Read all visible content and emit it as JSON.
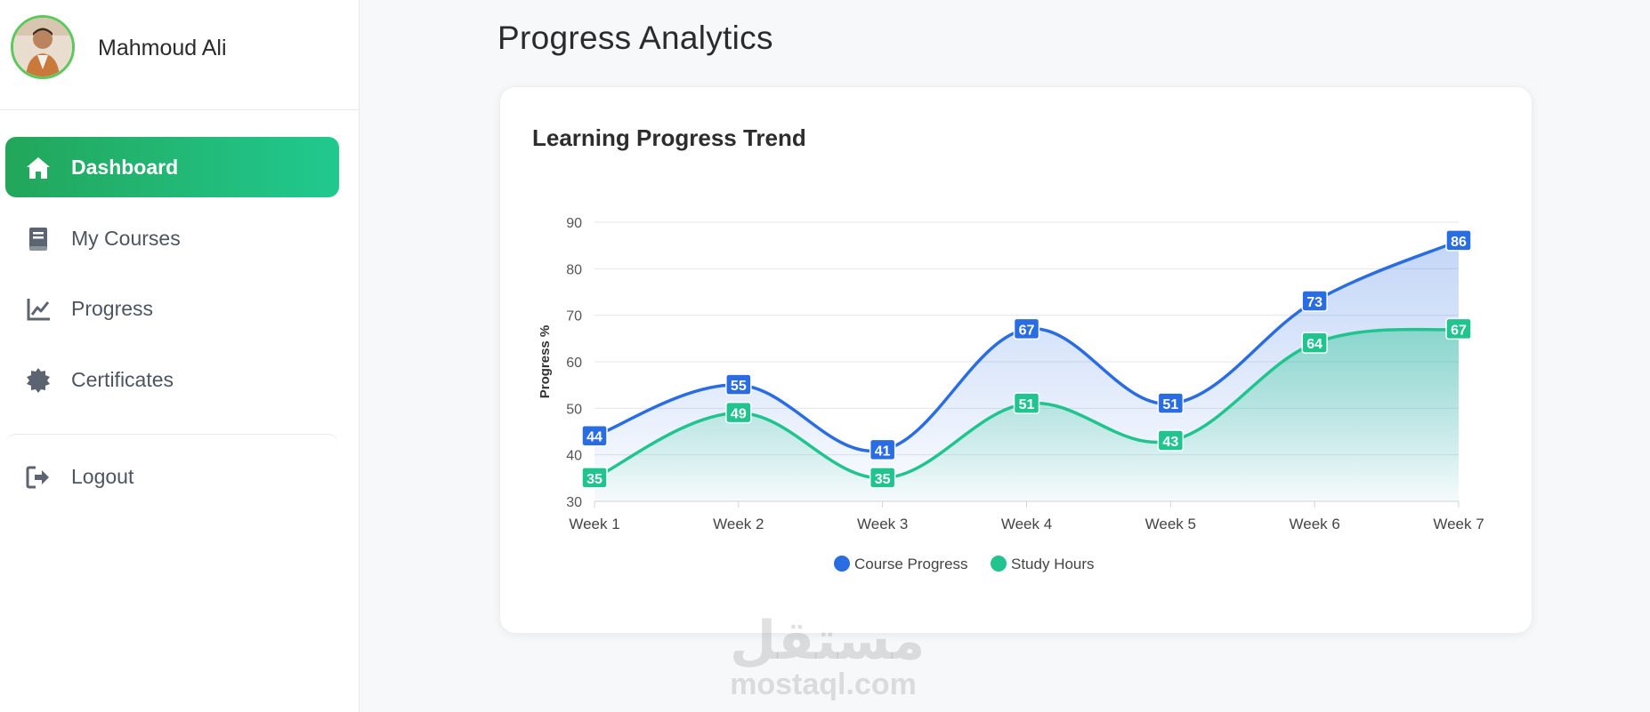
{
  "user": {
    "name": "Mahmoud Ali"
  },
  "nav": {
    "items": [
      {
        "label": "Dashboard",
        "icon": "home-icon",
        "active": true
      },
      {
        "label": "My Courses",
        "icon": "book-icon",
        "active": false
      },
      {
        "label": "Progress",
        "icon": "chart-line-icon",
        "active": false
      },
      {
        "label": "Certificates",
        "icon": "certificate-icon",
        "active": false
      }
    ],
    "logout": {
      "label": "Logout",
      "icon": "logout-icon"
    }
  },
  "page": {
    "title": "Progress Analytics"
  },
  "card": {
    "title": "Learning Progress Trend"
  },
  "watermark": {
    "arabic": "مستقل",
    "latin": "mostaql.com"
  },
  "colors": {
    "accent_start": "#22a65a",
    "accent_end": "#21c98f",
    "series_blue": "#2a6de3",
    "series_green": "#21c48f"
  },
  "chart_data": {
    "type": "line",
    "title": "",
    "xlabel": "",
    "ylabel": "Progress %",
    "categories": [
      "Week 1",
      "Week 2",
      "Week 3",
      "Week 4",
      "Week 5",
      "Week 6",
      "Week 7"
    ],
    "ylim": [
      30,
      90
    ],
    "yticks": [
      30,
      40,
      50,
      60,
      70,
      80,
      90
    ],
    "grid": true,
    "legend": "bottom",
    "series": [
      {
        "name": "Course Progress",
        "values": [
          44,
          55,
          41,
          67,
          51,
          73,
          86
        ],
        "color": "#2a6de3",
        "fill": "area"
      },
      {
        "name": "Study Hours",
        "values": [
          35,
          49,
          35,
          51,
          43,
          64,
          67
        ],
        "color": "#21c48f",
        "fill": "area"
      }
    ],
    "data_labels": true
  }
}
